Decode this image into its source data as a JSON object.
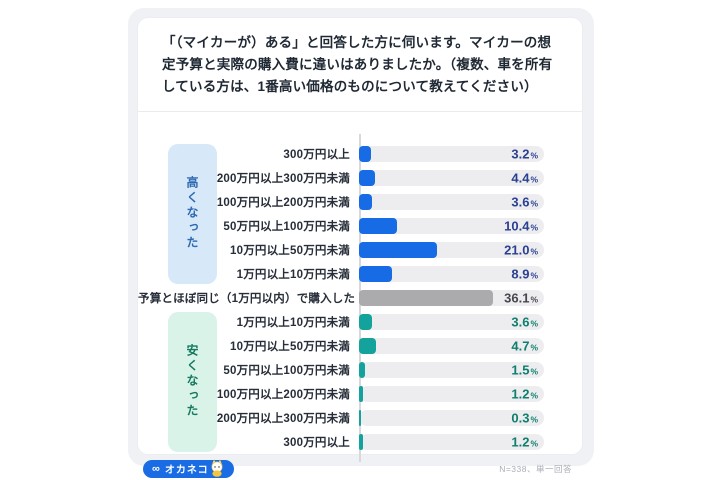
{
  "title": "「（マイカーが）ある」と回答した方に伺います。マイカーの想定予算と実際の購入費に違いはありましたか。（複数、車を所有している方は、1番高い価格のものについて教えてください）",
  "chart_data": {
    "type": "bar",
    "orientation": "horizontal",
    "unit": "%",
    "axis_max_percent": 50,
    "legend_position": "left-group-boxes",
    "grid": false,
    "group_labels": {
      "higher": {
        "label": "高くなった",
        "box_fill": "#d7e8f8",
        "text_color": "#2d69b3"
      },
      "lower": {
        "label": "安くなった",
        "box_fill": "#d9f3e8",
        "text_color": "#14795e"
      }
    },
    "colors": {
      "higher": {
        "bar": "#176be4",
        "value": "#2a4191"
      },
      "same": {
        "bar": "#ababad",
        "value": "#46484d"
      },
      "lower": {
        "bar": "#14a29c",
        "value": "#0d7f6c"
      }
    },
    "rows": [
      {
        "label": "300万円以上",
        "value": 3.2,
        "display": "3.2",
        "group": "higher"
      },
      {
        "label": "200万円以上300万円未満",
        "value": 4.4,
        "display": "4.4",
        "group": "higher"
      },
      {
        "label": "100万円以上200万円未満",
        "value": 3.6,
        "display": "3.6",
        "group": "higher"
      },
      {
        "label": "50万円以上100万円未満",
        "value": 10.4,
        "display": "10.4",
        "group": "higher"
      },
      {
        "label": "10万円以上50万円未満",
        "value": 21.0,
        "display": "21.0",
        "group": "higher"
      },
      {
        "label": "1万円以上10万円未満",
        "value": 8.9,
        "display": "8.9",
        "group": "higher"
      },
      {
        "label": "予算とほぼ同じ（1万円以内）で購入した",
        "value": 36.1,
        "display": "36.1",
        "group": "same"
      },
      {
        "label": "1万円以上10万円未満",
        "value": 3.6,
        "display": "3.6",
        "group": "lower"
      },
      {
        "label": "10万円以上50万円未満",
        "value": 4.7,
        "display": "4.7",
        "group": "lower"
      },
      {
        "label": "50万円以上100万円未満",
        "value": 1.5,
        "display": "1.5",
        "group": "lower"
      },
      {
        "label": "100万円以上200万円未満",
        "value": 1.2,
        "display": "1.2",
        "group": "lower"
      },
      {
        "label": "200万円以上300万円未満",
        "value": 0.3,
        "display": "0.3",
        "group": "lower"
      },
      {
        "label": "300万円以上",
        "value": 1.2,
        "display": "1.2",
        "group": "lower"
      }
    ]
  },
  "footer": {
    "logo_infinity": "∞",
    "logo_text": "オカネコ",
    "note": "N=338、単一回答"
  },
  "percent_sign": "%"
}
